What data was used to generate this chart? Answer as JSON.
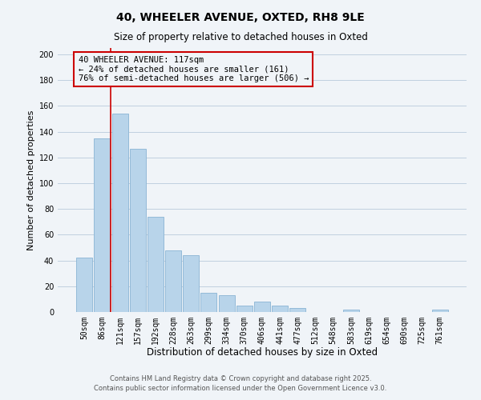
{
  "title": "40, WHEELER AVENUE, OXTED, RH8 9LE",
  "subtitle": "Size of property relative to detached houses in Oxted",
  "xlabel": "Distribution of detached houses by size in Oxted",
  "ylabel": "Number of detached properties",
  "bar_labels": [
    "50sqm",
    "86sqm",
    "121sqm",
    "157sqm",
    "192sqm",
    "228sqm",
    "263sqm",
    "299sqm",
    "334sqm",
    "370sqm",
    "406sqm",
    "441sqm",
    "477sqm",
    "512sqm",
    "548sqm",
    "583sqm",
    "619sqm",
    "654sqm",
    "690sqm",
    "725sqm",
    "761sqm"
  ],
  "bar_values": [
    42,
    135,
    154,
    127,
    74,
    48,
    44,
    15,
    13,
    5,
    8,
    5,
    3,
    0,
    0,
    2,
    0,
    0,
    0,
    0,
    2
  ],
  "bar_color": "#b8d4ea",
  "bar_edge_color": "#8ab4d4",
  "annotation_line1": "40 WHEELER AVENUE: 117sqm",
  "annotation_line2": "← 24% of detached houses are smaller (161)",
  "annotation_line3": "76% of semi-detached houses are larger (506) →",
  "vline_color": "#cc0000",
  "annotation_box_edge": "#cc0000",
  "ylim": [
    0,
    205
  ],
  "yticks": [
    0,
    20,
    40,
    60,
    80,
    100,
    120,
    140,
    160,
    180,
    200
  ],
  "footer_line1": "Contains HM Land Registry data © Crown copyright and database right 2025.",
  "footer_line2": "Contains public sector information licensed under the Open Government Licence v3.0.",
  "background_color": "#f0f4f8",
  "grid_color": "#c0d0e0"
}
